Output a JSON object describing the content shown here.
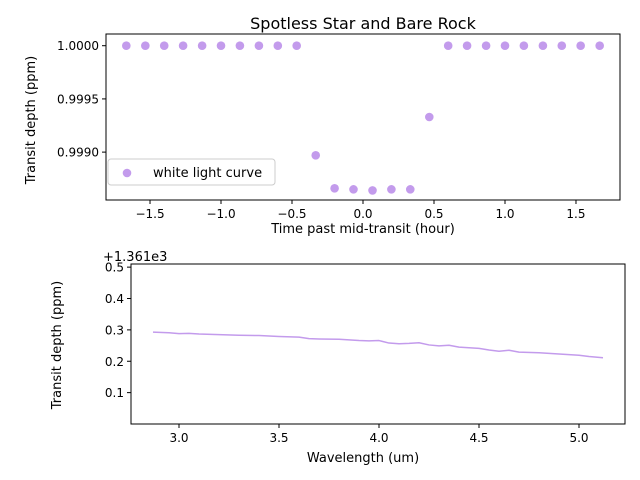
{
  "style": {
    "series_color": "#c39bec",
    "axes_color": "#000000",
    "background": "#ffffff"
  },
  "chart_data": [
    {
      "type": "scatter",
      "title": "Spotless Star and Bare Rock",
      "xlabel": "Time past mid-transit (hour)",
      "ylabel": "Transit depth (ppm)",
      "xlim": [
        -1.81,
        1.81
      ],
      "ylim": [
        0.99855,
        1.00011
      ],
      "xticks": [
        -1.5,
        -1.0,
        -0.5,
        0.0,
        0.5,
        1.0,
        1.5
      ],
      "xtick_labels": [
        "−1.5",
        "−1.0",
        "−0.5",
        "0.0",
        "0.5",
        "1.0",
        "1.5"
      ],
      "yticks": [
        0.999,
        0.9995,
        1.0
      ],
      "ytick_labels": [
        "0.9990",
        "0.9995",
        "1.0000"
      ],
      "grid": false,
      "legend": {
        "position": "lower-left",
        "entries": [
          "white light curve"
        ]
      },
      "series": [
        {
          "name": "white light curve",
          "x": [
            -1.667,
            -1.533,
            -1.4,
            -1.267,
            -1.133,
            -1.0,
            -0.867,
            -0.733,
            -0.6,
            -0.467,
            -0.333,
            -0.2,
            -0.067,
            0.067,
            0.2,
            0.333,
            0.467,
            0.6,
            0.733,
            0.867,
            1.0,
            1.133,
            1.267,
            1.4,
            1.533,
            1.667
          ],
          "y": [
            1.0,
            1.0,
            1.0,
            1.0,
            1.0,
            1.0,
            1.0,
            1.0,
            1.0,
            1.0,
            0.99897,
            0.99866,
            0.99865,
            0.99864,
            0.99865,
            0.99865,
            0.99933,
            1.0,
            1.0,
            1.0,
            1.0,
            1.0,
            1.0,
            1.0,
            1.0,
            1.0
          ]
        }
      ]
    },
    {
      "type": "line",
      "title": "",
      "xlabel": "Wavelength (um)",
      "ylabel": "Transit depth (ppm)",
      "offset_text": "+1.361e3",
      "xlim": [
        2.76,
        5.23
      ],
      "ylim": [
        0.0,
        0.51
      ],
      "xticks": [
        3.0,
        3.5,
        4.0,
        4.5,
        5.0
      ],
      "xtick_labels": [
        "3.0",
        "3.5",
        "4.0",
        "4.5",
        "5.0"
      ],
      "yticks": [
        0.1,
        0.2,
        0.3,
        0.4,
        0.5
      ],
      "ytick_labels": [
        "0.1",
        "0.2",
        "0.3",
        "0.4",
        "0.5"
      ],
      "grid": false,
      "series": [
        {
          "x": [
            2.87,
            2.95,
            3.0,
            3.05,
            3.1,
            3.2,
            3.3,
            3.4,
            3.5,
            3.6,
            3.65,
            3.7,
            3.8,
            3.9,
            3.95,
            4.0,
            4.05,
            4.1,
            4.15,
            4.2,
            4.25,
            4.3,
            4.35,
            4.4,
            4.5,
            4.55,
            4.6,
            4.65,
            4.7,
            4.8,
            4.9,
            5.0,
            5.05,
            5.12
          ],
          "y": [
            0.293,
            0.291,
            0.288,
            0.289,
            0.287,
            0.285,
            0.283,
            0.282,
            0.279,
            0.277,
            0.272,
            0.271,
            0.27,
            0.266,
            0.265,
            0.266,
            0.258,
            0.256,
            0.257,
            0.259,
            0.252,
            0.249,
            0.251,
            0.245,
            0.241,
            0.236,
            0.232,
            0.235,
            0.229,
            0.227,
            0.223,
            0.219,
            0.215,
            0.211
          ]
        }
      ]
    }
  ]
}
